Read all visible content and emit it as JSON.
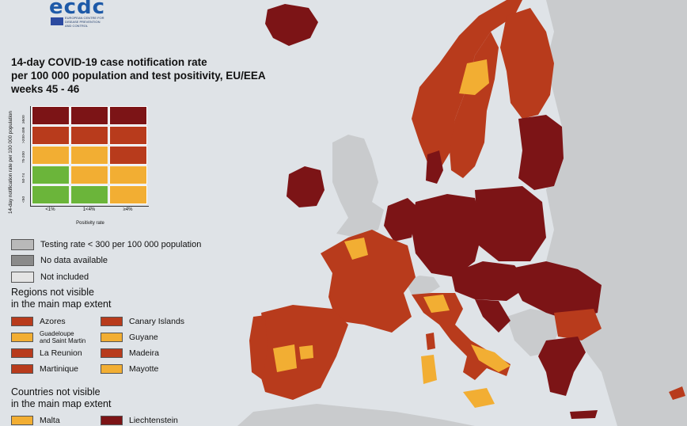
{
  "logo": {
    "text": "ecdc",
    "subtitle": "EUROPEAN CENTRE FOR DISEASE PREVENTION AND CONTROL"
  },
  "title": {
    "line1": "14-day COVID-19 case notification rate",
    "line2": "per 100 000 population and test positivity, EU/EEA",
    "line3": "weeks 45 - 46"
  },
  "colors": {
    "darkred": "#7c1416",
    "red": "#b83b1c",
    "orange": "#f2ae33",
    "green": "#6bb53a",
    "grey": "#b9b9b9",
    "darkgrey": "#8a8a8a",
    "lightgrey": "#e4e4e4",
    "sea": "#dfe3e7",
    "land_outside": "#c9cbcd"
  },
  "matrix": {
    "y_axis_label": "14-day notification rate per 100 000 population",
    "x_axis_label": "Positivity rate",
    "columns": [
      "<1%",
      "1<4%",
      "≥4%"
    ],
    "rows": [
      {
        "label": "≥500",
        "cells": [
          "darkred",
          "darkred",
          "darkred"
        ]
      },
      {
        "label": ">200-499",
        "cells": [
          "red",
          "red",
          "red"
        ]
      },
      {
        "label": "75-200",
        "cells": [
          "orange",
          "orange",
          "red"
        ]
      },
      {
        "label": "50-74",
        "cells": [
          "green",
          "orange",
          "orange"
        ]
      },
      {
        "label": "<50",
        "cells": [
          "green",
          "green",
          "orange"
        ]
      }
    ]
  },
  "legend": {
    "testing": "Testing rate < 300 per 100 000 population",
    "no_data": "No data available",
    "not_included": "Not included"
  },
  "regions": {
    "heading_line1": "Regions not visible",
    "heading_line2": "in the main map extent",
    "left": [
      {
        "name": "Azores",
        "color": "red"
      },
      {
        "name_line1": "Guadeloupe",
        "name_line2": "and Saint Martin",
        "color": "orange"
      },
      {
        "name": "La Reunion",
        "color": "red"
      },
      {
        "name": "Martinique",
        "color": "red"
      }
    ],
    "right": [
      {
        "name": "Canary Islands",
        "color": "red"
      },
      {
        "name": "Guyane",
        "color": "orange"
      },
      {
        "name": "Madeira",
        "color": "red"
      },
      {
        "name": "Mayotte",
        "color": "orange"
      }
    ]
  },
  "countries": {
    "heading_line1": "Countries not visible",
    "heading_line2": "in the main map extent",
    "items": [
      {
        "name": "Malta",
        "color": "orange"
      },
      {
        "name": "Liechtenstein",
        "color": "darkred"
      }
    ]
  }
}
